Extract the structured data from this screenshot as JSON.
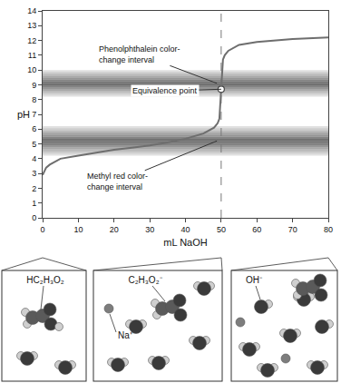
{
  "chart_data": {
    "type": "line",
    "x_label": "mL NaOH",
    "y_label": "pH",
    "x": [
      0,
      1,
      2,
      5,
      10,
      15,
      20,
      25,
      30,
      35,
      40,
      45,
      48,
      49,
      49.5,
      50,
      50.5,
      51,
      52,
      55,
      60,
      70,
      80
    ],
    "values": [
      2.9,
      3.4,
      3.6,
      4.0,
      4.2,
      4.4,
      4.6,
      4.75,
      4.9,
      5.1,
      5.35,
      5.7,
      6.1,
      6.4,
      6.7,
      8.7,
      10.7,
      11.0,
      11.3,
      11.7,
      11.9,
      12.1,
      12.2
    ],
    "color": "#6e6e6e",
    "line_style": "solid",
    "xlim": [
      0,
      80
    ],
    "xticks": [
      0,
      10,
      20,
      30,
      40,
      50,
      60,
      70,
      80
    ],
    "ylim": [
      0,
      14
    ],
    "yticks": [
      0,
      1,
      2,
      3,
      4,
      5,
      6,
      7,
      8,
      9,
      10,
      11,
      12,
      13,
      14
    ],
    "grid": false,
    "bands": [
      {
        "label": "Phenolphthalein color-change interval",
        "range": [
          8.2,
          10.0
        ]
      },
      {
        "label": "Methyl red color-change interval",
        "range": [
          4.2,
          6.2
        ]
      }
    ],
    "equivalence_point": {
      "label": "Equivalence point",
      "x": 50,
      "y": 8.7
    }
  },
  "panels": [
    {
      "labels": [
        "HC₂H₃O₂"
      ]
    },
    {
      "labels": [
        "C₂H₃O₂⁻",
        "Na⁺"
      ]
    },
    {
      "labels": [
        "OH⁻"
      ]
    }
  ]
}
